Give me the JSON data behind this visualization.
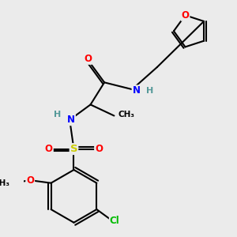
{
  "bg_color": "#ebebeb",
  "bond_color": "#000000",
  "atom_colors": {
    "O": "#ff0000",
    "N": "#0000ff",
    "S": "#cccc00",
    "Cl": "#00bb00",
    "C": "#000000",
    "H": "#559999"
  },
  "lw": 1.5,
  "fs": 8.5
}
